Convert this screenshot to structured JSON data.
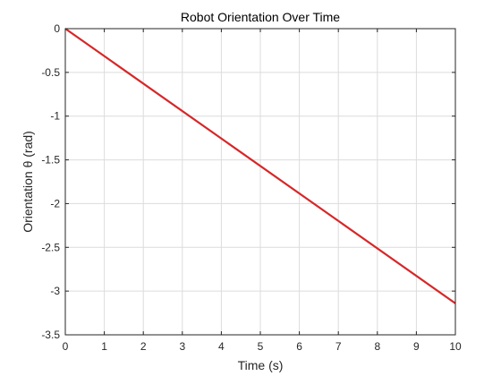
{
  "chart_data": {
    "type": "line",
    "title": "Robot Orientation Over Time",
    "xlabel": "Time (s)",
    "ylabel": "Orientation θ (rad)",
    "xlim": [
      0,
      10
    ],
    "ylim": [
      -3.5,
      0
    ],
    "x_ticks": [
      0,
      1,
      2,
      3,
      4,
      5,
      6,
      7,
      8,
      9,
      10
    ],
    "x_tick_labels": [
      "0",
      "1",
      "2",
      "3",
      "4",
      "5",
      "6",
      "7",
      "8",
      "9",
      "10"
    ],
    "y_ticks": [
      0,
      -0.5,
      -1,
      -1.5,
      -2,
      -2.5,
      -3,
      -3.5
    ],
    "y_tick_labels": [
      "0",
      "-0.5",
      "-1",
      "-1.5",
      "-2",
      "-2.5",
      "-3",
      "-3.5"
    ],
    "grid": true,
    "series": [
      {
        "color": "#d62728",
        "x": [
          0,
          10
        ],
        "y": [
          0,
          -3.14
        ]
      }
    ]
  }
}
